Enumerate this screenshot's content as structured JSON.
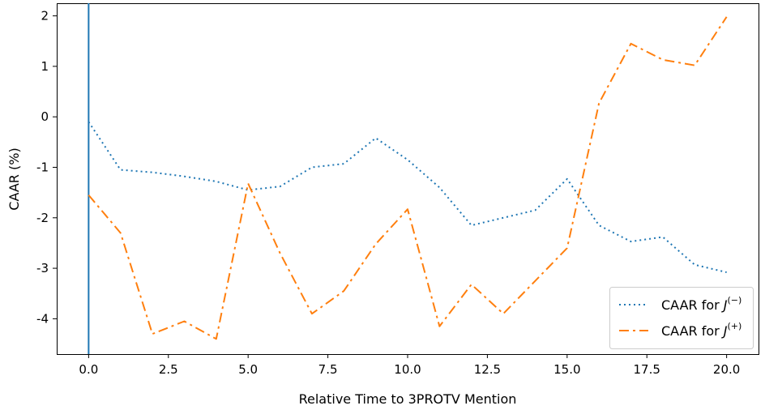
{
  "chart_data": {
    "type": "line",
    "title": "",
    "xlabel": "Relative Time to 3PROTV Mention",
    "ylabel": "CAAR (%)",
    "xlim": [
      -1.0,
      21.0
    ],
    "ylim": [
      -4.7,
      2.25
    ],
    "x_ticks": [
      0.0,
      2.5,
      5.0,
      7.5,
      10.0,
      12.5,
      15.0,
      17.5,
      20.0
    ],
    "x_tick_labels": [
      "0.0",
      "2.5",
      "5.0",
      "7.5",
      "10.0",
      "12.5",
      "15.0",
      "17.5",
      "20.0"
    ],
    "y_ticks": [
      2,
      1,
      0,
      -1,
      -2,
      -3,
      -4
    ],
    "y_tick_labels": [
      "2",
      "1",
      "0",
      "-1",
      "-2",
      "-3",
      "-4"
    ],
    "grid": false,
    "legend_position": "lower-right",
    "vline": {
      "x": 0,
      "color": "#1f77b4"
    },
    "x": [
      0,
      1,
      2,
      3,
      4,
      5,
      6,
      7,
      8,
      9,
      10,
      11,
      12,
      13,
      14,
      15,
      16,
      17,
      18,
      19,
      20
    ],
    "series": [
      {
        "label_prefix": "CAAR for ",
        "label_var": "J",
        "label_sup": "(−)",
        "style": "dotted",
        "color": "#1f77b4",
        "values": [
          -0.1,
          -1.05,
          -1.1,
          -1.18,
          -1.28,
          -1.45,
          -1.38,
          -1.0,
          -0.93,
          -0.42,
          -0.85,
          -1.4,
          -2.15,
          -2.0,
          -1.85,
          -1.23,
          -2.15,
          -2.47,
          -2.38,
          -2.93,
          -3.08
        ]
      },
      {
        "label_prefix": "CAAR for ",
        "label_var": "J",
        "label_sup": "(+)",
        "style": "dashdot",
        "color": "#ff7f0e",
        "values": [
          -1.55,
          -2.3,
          -4.3,
          -4.05,
          -4.4,
          -1.32,
          -2.7,
          -3.9,
          -3.45,
          -2.52,
          -1.83,
          -4.15,
          -3.32,
          -3.9,
          -3.25,
          -2.6,
          0.27,
          1.45,
          1.13,
          1.02,
          1.98
        ]
      }
    ]
  }
}
